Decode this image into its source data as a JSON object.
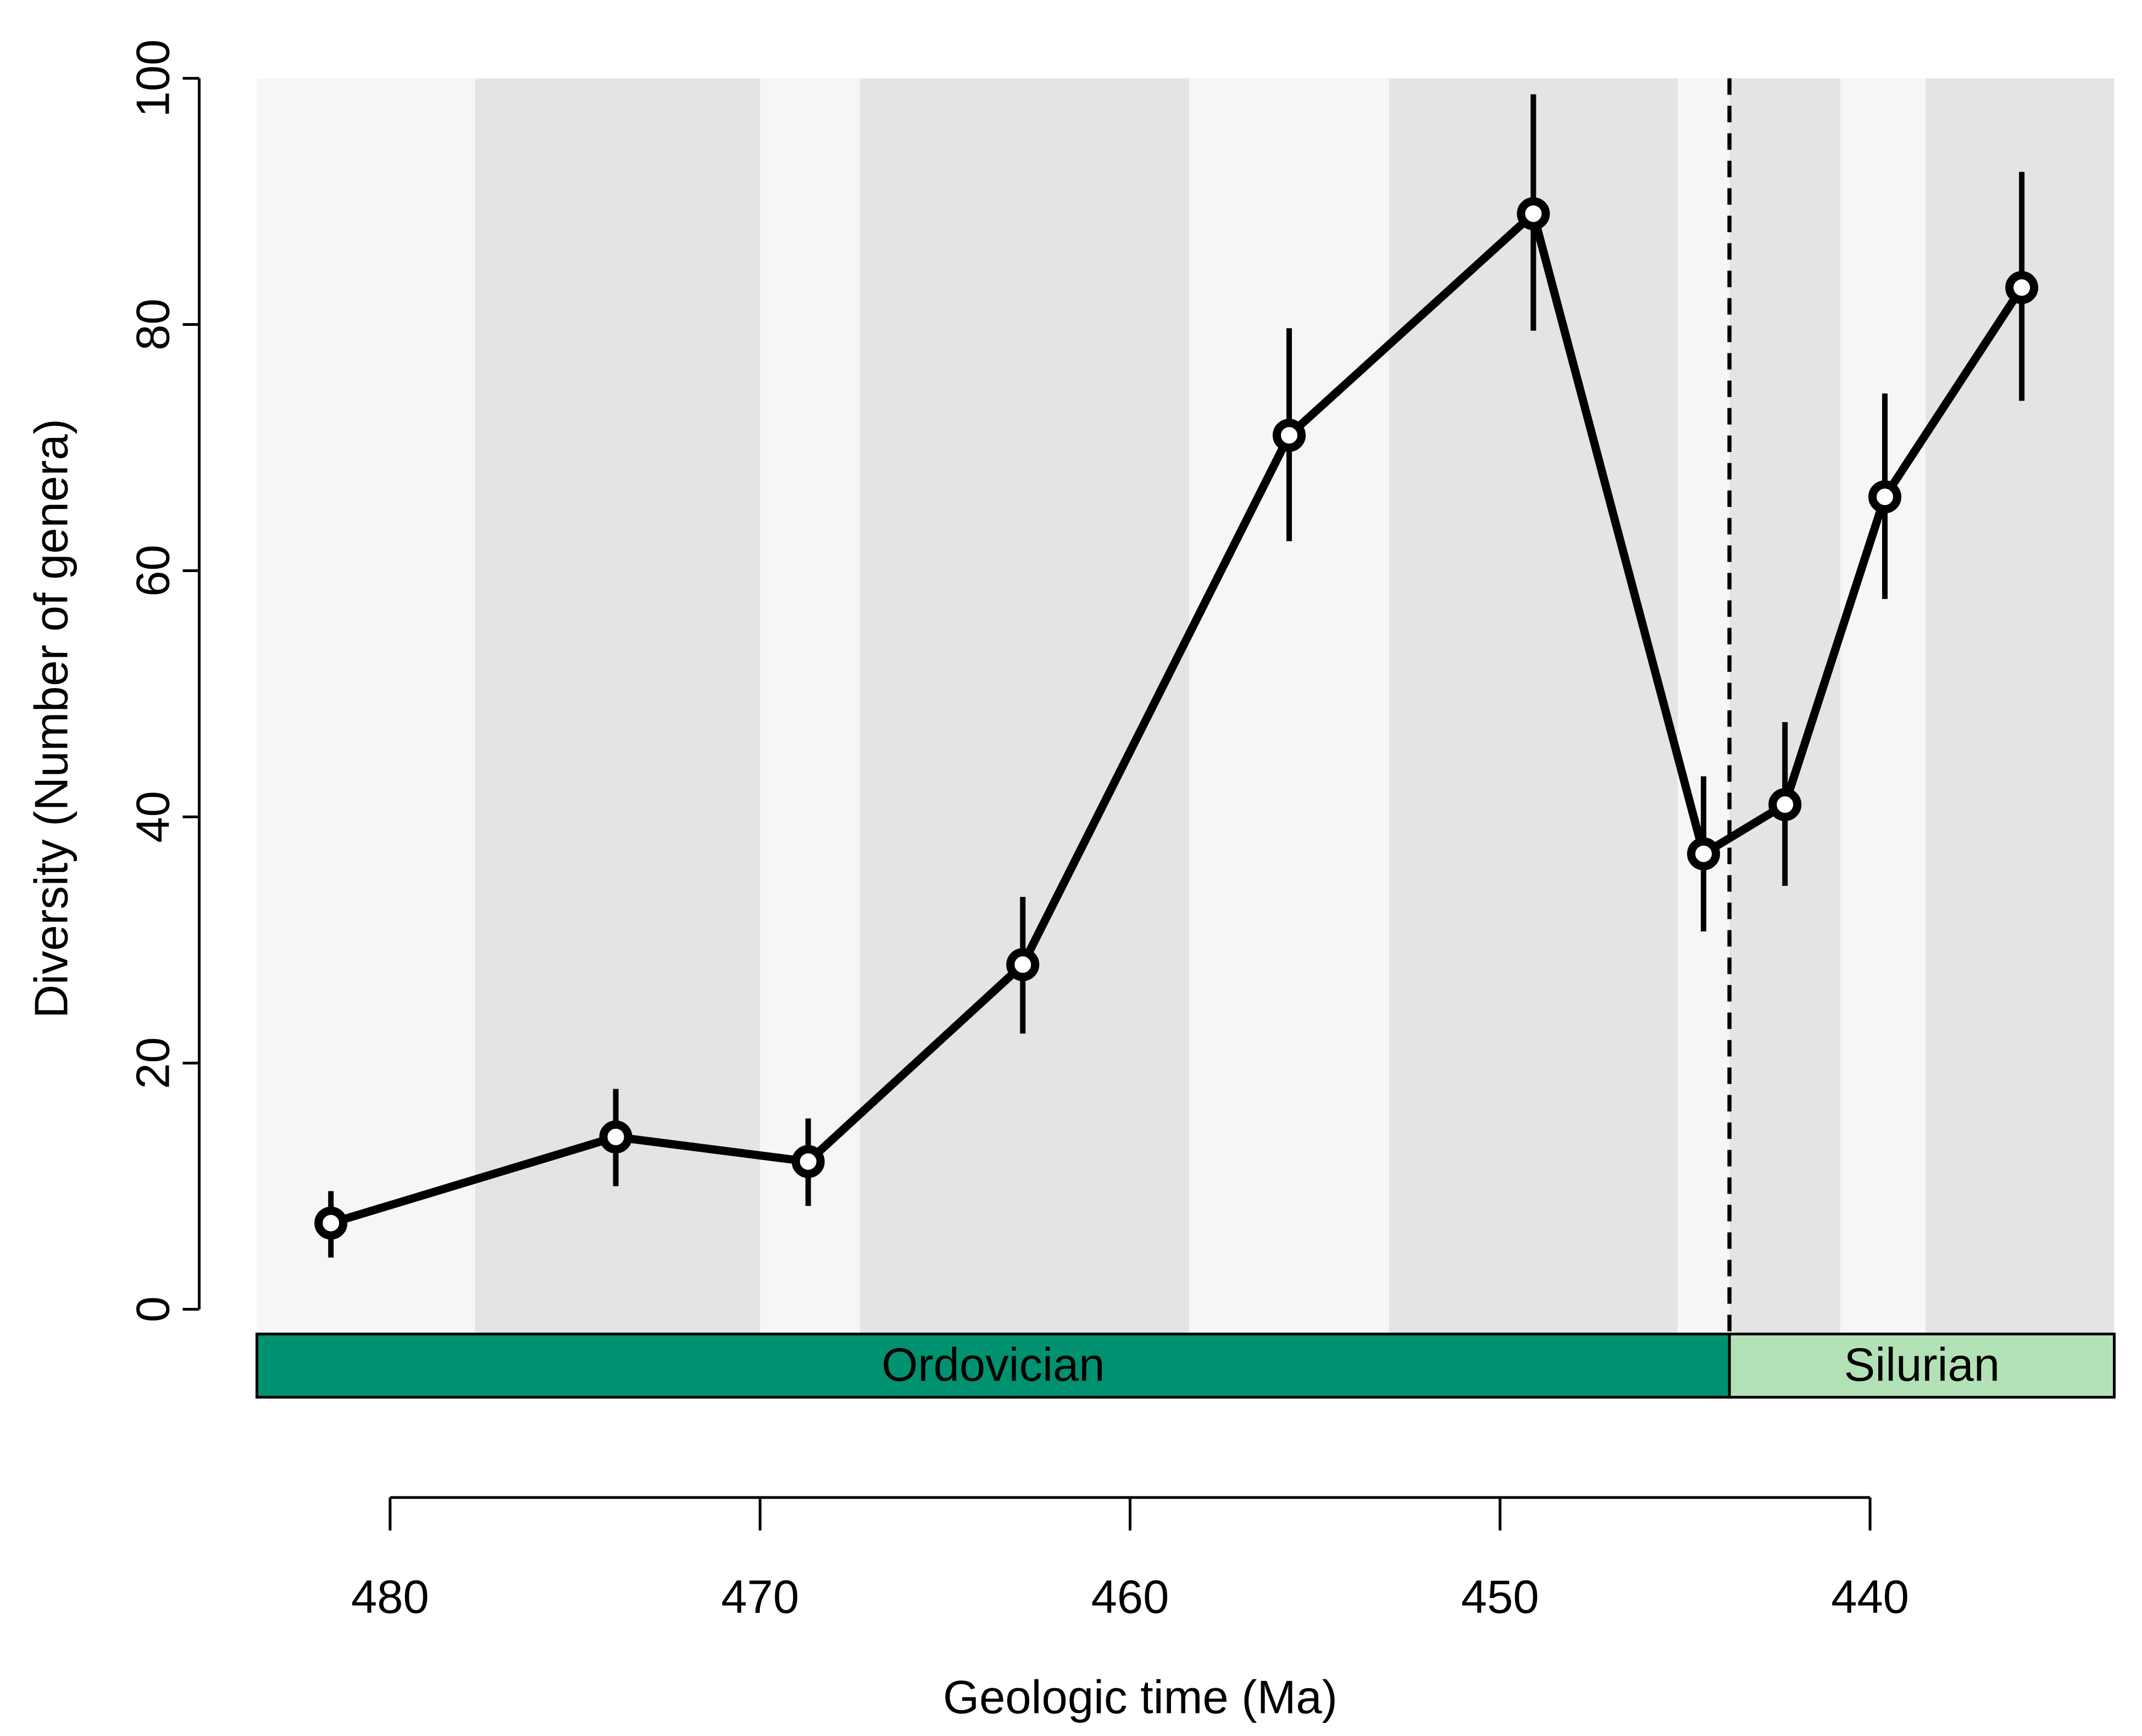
{
  "chart_data": {
    "type": "line",
    "x_label": "Geologic time (Ma)",
    "y_label": "Diversity (Number of genera)",
    "x": [
      481.6,
      473.9,
      468.7,
      462.9,
      455.7,
      449.1,
      444.5,
      442.3,
      439.6,
      435.9
    ],
    "series": [
      {
        "color": "#000000",
        "values": [
          7,
          14,
          12,
          28,
          71,
          89,
          37,
          41,
          66,
          83
        ],
        "lower": [
          4.2,
          10.0,
          8.4,
          22.4,
          62.4,
          79.5,
          30.7,
          34.4,
          57.7,
          73.8
        ],
        "upper": [
          9.6,
          17.9,
          15.5,
          33.5,
          79.7,
          98.7,
          43.3,
          47.7,
          74.4,
          92.4
        ]
      }
    ],
    "xlim": [
      483.6,
      433.4
    ],
    "xticks": [
      480,
      470,
      460,
      450,
      440
    ],
    "ylim": [
      0,
      100
    ],
    "yticks": [
      0,
      20,
      40,
      60,
      80,
      100
    ],
    "stage_boundaries": [
      483.6,
      477.7,
      470.0,
      467.3,
      458.4,
      453.0,
      445.2,
      443.8,
      440.8,
      438.5,
      433.4
    ],
    "stage_colors": [
      "#f6f6f6",
      "#e4e4e4"
    ],
    "periods": [
      {
        "name": "Ordovician",
        "start": 483.6,
        "end": 443.8,
        "color": "#009270"
      },
      {
        "name": "Silurian",
        "start": 443.8,
        "end": 433.4,
        "color": "#b3e1b6"
      }
    ]
  }
}
